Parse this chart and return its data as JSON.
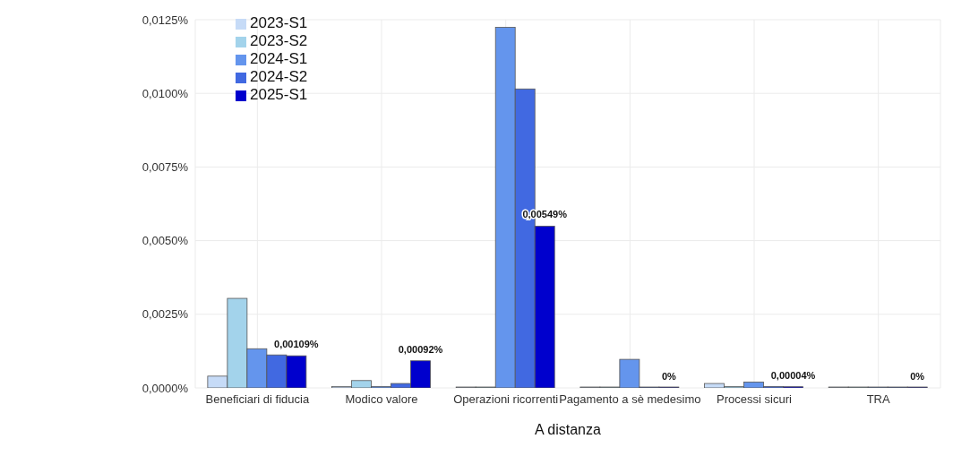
{
  "chart_data": {
    "type": "bar",
    "xlabel": "A distanza",
    "categories": [
      "Beneficiari di fiducia",
      "Modico valore",
      "Operazioni ricorrenti",
      "Pagamento a sè medesimo",
      "Processi sicuri",
      "TRA"
    ],
    "series": [
      {
        "name": "2023-S1",
        "color": "#c6dbf7",
        "values": [
          0.0004,
          5e-05,
          0,
          0,
          0.00015,
          0
        ]
      },
      {
        "name": "2023-S2",
        "color": "#a3d3eb",
        "values": [
          0.00304,
          0.00025,
          0,
          0,
          5e-05,
          0
        ]
      },
      {
        "name": "2024-S1",
        "color": "#6495ed",
        "values": [
          0.00133,
          5e-05,
          0.01224,
          0.00097,
          0.0002,
          0
        ]
      },
      {
        "name": "2024-S2",
        "color": "#4169e1",
        "values": [
          0.00112,
          0.00015,
          0.01015,
          0,
          5e-05,
          0
        ]
      },
      {
        "name": "2025-S1",
        "color": "#0000cd",
        "values": [
          0.00109,
          0.00092,
          0.00549,
          0,
          4e-05,
          0
        ],
        "value_labels": [
          "0,00109%",
          "0,00092%",
          "0,00549%",
          "0%",
          "0,00004%",
          "0%"
        ]
      }
    ],
    "ylim": [
      0,
      0.0125
    ],
    "yticks": [
      {
        "value": 0,
        "label": "0,0000%"
      },
      {
        "value": 0.0025,
        "label": "0,0025%"
      },
      {
        "value": 0.005,
        "label": "0,0050%"
      },
      {
        "value": 0.0075,
        "label": "0,0075%"
      },
      {
        "value": 0.01,
        "label": "0,0100%"
      },
      {
        "value": 0.0125,
        "label": "0,0125%"
      }
    ],
    "grid": true,
    "legend": "top left"
  }
}
